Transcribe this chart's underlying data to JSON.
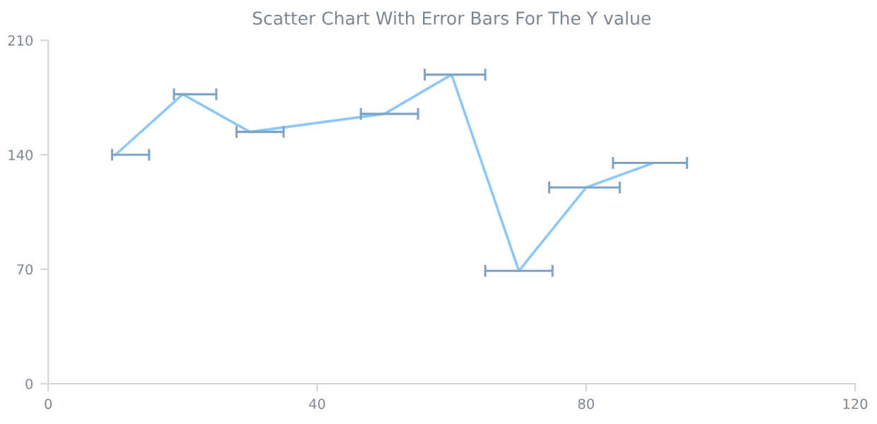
{
  "chart_data": {
    "type": "line",
    "title": "Scatter Chart With Error Bars For The Y value",
    "x": [
      10,
      20,
      30,
      50,
      60,
      70,
      80,
      90
    ],
    "values": [
      140,
      177,
      154,
      165,
      189,
      69,
      120,
      135
    ],
    "xerrors": [
      [
        9.5,
        15
      ],
      [
        18.7,
        25
      ],
      [
        28,
        35
      ],
      [
        46.5,
        55
      ],
      [
        56,
        65
      ],
      [
        65,
        75
      ],
      [
        74.5,
        85
      ],
      [
        84,
        95
      ]
    ],
    "color": "#8ec8f6",
    "xlim": [
      0,
      120
    ],
    "xticks": [
      0,
      40,
      80,
      120
    ],
    "ylim": [
      0,
      210
    ],
    "yticks": [
      0,
      70,
      140,
      210
    ],
    "grid": false,
    "marker": "none",
    "line_style": "solid"
  }
}
